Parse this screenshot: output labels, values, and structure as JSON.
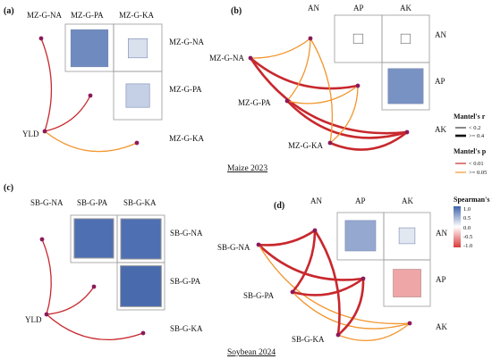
{
  "colors": {
    "curve_red": "#c8282d",
    "curve_orange": "#f2962f",
    "node": "#8b1a5a",
    "cell_border": "#9a9a9a",
    "scale_high": "#3f63aa",
    "scale_mid": "#ffffff",
    "scale_low": "#d93a3a"
  },
  "captions": {
    "maize": "Maize 2023",
    "soybean": "Soybean 2024"
  },
  "chart_data": [
    {
      "type": "heatmap",
      "panel": "(a)",
      "columns": [
        "MZ-G-NA",
        "MZ-G-PA",
        "MZ-G-KA"
      ],
      "rows": [
        "MZ-G-NA",
        "MZ-G-PA",
        "MZ-G-KA"
      ],
      "triangle": "upper-off-diagonal",
      "cells": [
        {
          "row": "MZ-G-NA",
          "col": "MZ-G-PA",
          "r": 0.75
        },
        {
          "row": "MZ-G-NA",
          "col": "MZ-G-KA",
          "r": 0.2
        },
        {
          "row": "MZ-G-PA",
          "col": "MZ-G-KA",
          "r": 0.3
        }
      ],
      "mantel_node": "YLD",
      "links": [
        {
          "to": "MZ-G-NA",
          "p": "< 0.01",
          "r": "< 0.2"
        },
        {
          "to": "MZ-G-PA",
          "p": "< 0.01",
          "r": "< 0.2"
        },
        {
          "to": "MZ-G-KA",
          "p": ">= 0.05",
          "r": "< 0.2"
        }
      ]
    },
    {
      "type": "heatmap",
      "panel": "(b)",
      "columns": [
        "AN",
        "AP",
        "AK"
      ],
      "rows": [
        "AN",
        "AP",
        "AK"
      ],
      "triangle": "upper",
      "cells": [
        {
          "row": "AN",
          "col": "AP",
          "r": 0.05
        },
        {
          "row": "AN",
          "col": "AK",
          "r": 0.05
        },
        {
          "row": "AP",
          "col": "AK",
          "r": 0.7
        }
      ],
      "variables": [
        "MZ-G-NA",
        "MZ-G-PA",
        "MZ-G-KA"
      ],
      "links": [
        {
          "from": "MZ-G-NA",
          "to": "AN",
          "p": ">= 0.05",
          "r": "< 0.2"
        },
        {
          "from": "MZ-G-NA",
          "to": "AP",
          "p": "< 0.01",
          "r": ">= 0.4"
        },
        {
          "from": "MZ-G-NA",
          "to": "AK",
          "p": "< 0.01",
          "r": ">= 0.4"
        },
        {
          "from": "MZ-G-PA",
          "to": "AN",
          "p": ">= 0.05",
          "r": "< 0.2"
        },
        {
          "from": "MZ-G-PA",
          "to": "AP",
          "p": ">= 0.05",
          "r": "< 0.2"
        },
        {
          "from": "MZ-G-PA",
          "to": "AK",
          "p": "< 0.01",
          "r": ">= 0.4"
        },
        {
          "from": "MZ-G-KA",
          "to": "AN",
          "p": ">= 0.05",
          "r": "< 0.2"
        },
        {
          "from": "MZ-G-KA",
          "to": "AP",
          "p": ">= 0.05",
          "r": "< 0.2"
        },
        {
          "from": "MZ-G-KA",
          "to": "AK",
          "p": "< 0.01",
          "r": ">= 0.4"
        }
      ]
    },
    {
      "type": "heatmap",
      "panel": "(c)",
      "columns": [
        "SB-G-NA",
        "SB-G-PA",
        "SB-G-KA"
      ],
      "rows": [
        "SB-G-NA",
        "SB-G-PA",
        "SB-G-KA"
      ],
      "triangle": "upper-off-diagonal",
      "cells": [
        {
          "row": "SB-G-NA",
          "col": "SB-G-PA",
          "r": 0.92
        },
        {
          "row": "SB-G-NA",
          "col": "SB-G-KA",
          "r": 0.92
        },
        {
          "row": "SB-G-PA",
          "col": "SB-G-KA",
          "r": 0.95
        }
      ],
      "mantel_node": "YLD",
      "links": [
        {
          "to": "SB-G-NA",
          "p": "< 0.01",
          "r": "< 0.2"
        },
        {
          "to": "SB-G-PA",
          "p": "< 0.01",
          "r": "< 0.2"
        },
        {
          "to": "SB-G-KA",
          "p": "< 0.01",
          "r": "< 0.2"
        }
      ]
    },
    {
      "type": "heatmap",
      "panel": "(d)",
      "columns": [
        "AN",
        "AP",
        "AK"
      ],
      "rows": [
        "AN",
        "AP",
        "AK"
      ],
      "triangle": "upper",
      "cells": [
        {
          "row": "AN",
          "col": "AP",
          "r": 0.55
        },
        {
          "row": "AN",
          "col": "AK",
          "r": 0.15
        },
        {
          "row": "AP",
          "col": "AK",
          "r": -0.45
        }
      ],
      "variables": [
        "SB-G-NA",
        "SB-G-PA",
        "SB-G-KA"
      ],
      "links": [
        {
          "from": "SB-G-NA",
          "to": "AN",
          "p": "< 0.01",
          "r": ">= 0.4"
        },
        {
          "from": "SB-G-NA",
          "to": "AP",
          "p": "< 0.01",
          "r": ">= 0.4"
        },
        {
          "from": "SB-G-NA",
          "to": "AK",
          "p": ">= 0.05",
          "r": "< 0.2"
        },
        {
          "from": "SB-G-PA",
          "to": "AN",
          "p": "< 0.01",
          "r": ">= 0.4"
        },
        {
          "from": "SB-G-PA",
          "to": "AP",
          "p": "< 0.01",
          "r": ">= 0.4"
        },
        {
          "from": "SB-G-PA",
          "to": "AK",
          "p": ">= 0.05",
          "r": "< 0.2"
        },
        {
          "from": "SB-G-KA",
          "to": "AN",
          "p": "< 0.01",
          "r": ">= 0.4"
        },
        {
          "from": "SB-G-KA",
          "to": "AP",
          "p": "< 0.01",
          "r": ">= 0.4"
        },
        {
          "from": "SB-G-KA",
          "to": "AK",
          "p": ">= 0.05",
          "r": "< 0.2"
        }
      ]
    }
  ],
  "legends": {
    "mantel_r": {
      "title": "Mantel's r",
      "items": [
        "< 0.2",
        ">= 0.4"
      ]
    },
    "mantel_p": {
      "title": "Mantel's p",
      "items": [
        "< 0.01",
        ">= 0.05"
      ]
    },
    "spearman": {
      "title": "Spearman's r",
      "ticks": [
        "1.0",
        "0.5",
        "0.0",
        "-0.5",
        "-1.0"
      ],
      "range": [
        -1,
        1
      ]
    }
  }
}
